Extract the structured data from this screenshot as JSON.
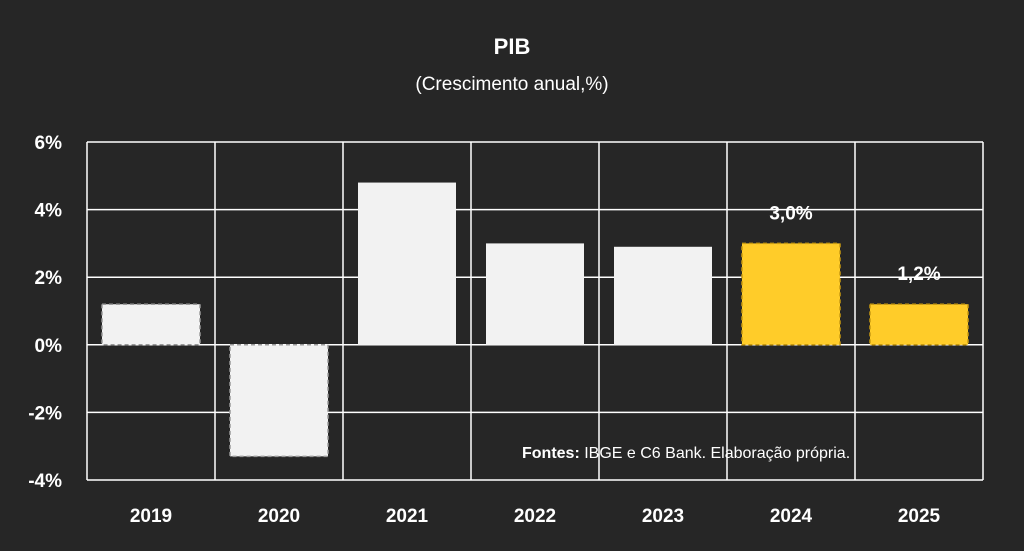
{
  "chart_data": {
    "type": "bar",
    "title": "PIB",
    "subtitle": "(Crescimento anual,%)",
    "categories": [
      "2019",
      "2020",
      "2021",
      "2022",
      "2023",
      "2024",
      "2025"
    ],
    "values": [
      1.2,
      -3.3,
      4.8,
      3.0,
      2.9,
      3.0,
      1.2
    ],
    "data_labels": [
      "",
      "",
      "",
      "",
      "",
      "3,0%",
      "1,2%"
    ],
    "bar_colors": [
      "#f2f2f2",
      "#f2f2f2",
      "#f2f2f2",
      "#f2f2f2",
      "#f2f2f2",
      "#ffcc29",
      "#ffcc29"
    ],
    "dashed_border": [
      true,
      true,
      false,
      false,
      false,
      true,
      true
    ],
    "ylim": [
      -4,
      6
    ],
    "yticks": [
      6,
      4,
      2,
      0,
      -2,
      -4
    ],
    "ytick_labels": [
      "6%",
      "4%",
      "2%",
      "0%",
      "-2%",
      "-4%"
    ],
    "grid": true,
    "xlabel": "",
    "ylabel": "",
    "legend": "none"
  },
  "source": {
    "label": "Fontes:",
    "text": " IBGE e  C6 Bank. Elaboração própria."
  },
  "colors": {
    "background": "#262626",
    "grid": "#ffffff",
    "actual_bar": "#f2f2f2",
    "forecast_bar": "#ffcc29"
  }
}
